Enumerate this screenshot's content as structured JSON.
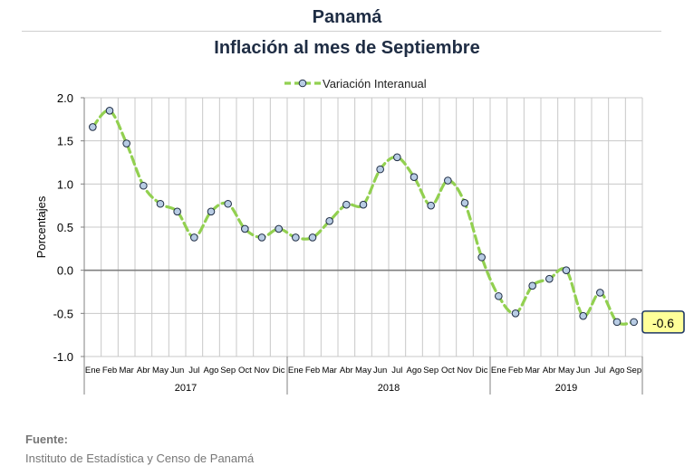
{
  "header": {
    "country": "Panamá",
    "title": "Inflación al mes de Septiembre"
  },
  "source": {
    "label": "Fuente:",
    "text": "Instituto de Estadística y Censo de Panamá"
  },
  "colors": {
    "line": "#92d050",
    "marker_fill": "#b8cce4",
    "marker_stroke": "#1f2d44",
    "grid": "#c8c8c8",
    "zero_line": "#808080",
    "callout_bg": "#ffff99",
    "callout_border": "#1f3864"
  },
  "chart_data": {
    "type": "line",
    "title": "Inflación al mes de Septiembre",
    "ylabel": "Porcentajes",
    "xlabel": "",
    "ylim": [
      -1.0,
      2.0
    ],
    "yticks": [
      "2.0",
      "1.5",
      "1.0",
      "0.5",
      "0.0",
      "-0.5",
      "-1.0"
    ],
    "ytick_values": [
      2.0,
      1.5,
      1.0,
      0.5,
      0.0,
      -0.5,
      -1.0
    ],
    "legend_position": "top-center",
    "grid": true,
    "categories": [
      "Ene",
      "Feb",
      "Mar",
      "Abr",
      "May",
      "Jun",
      "Jul",
      "Ago",
      "Sep",
      "Oct",
      "Nov",
      "Dic",
      "Ene",
      "Feb",
      "Mar",
      "Abr",
      "May",
      "Jun",
      "Jul",
      "Ago",
      "Sep",
      "Oct",
      "Nov",
      "Dic",
      "Ene",
      "Feb",
      "Mar",
      "Abr",
      "May",
      "Jun",
      "Jul",
      "Ago",
      "Sep"
    ],
    "years": [
      {
        "label": "2017",
        "count": 12
      },
      {
        "label": "2018",
        "count": 12
      },
      {
        "label": "2019",
        "count": 9
      }
    ],
    "series": [
      {
        "name": "Variación Interanual",
        "values": [
          1.66,
          1.85,
          1.47,
          0.98,
          0.77,
          0.68,
          0.38,
          0.68,
          0.77,
          0.48,
          0.38,
          0.48,
          0.38,
          0.38,
          0.57,
          0.76,
          0.76,
          1.17,
          1.31,
          1.08,
          0.75,
          1.04,
          0.78,
          0.15,
          -0.3,
          -0.5,
          -0.18,
          -0.1,
          0.0,
          -0.53,
          -0.26,
          -0.6,
          -0.6
        ]
      }
    ],
    "annotation": {
      "text": "-0.6",
      "point_index": 32
    }
  }
}
